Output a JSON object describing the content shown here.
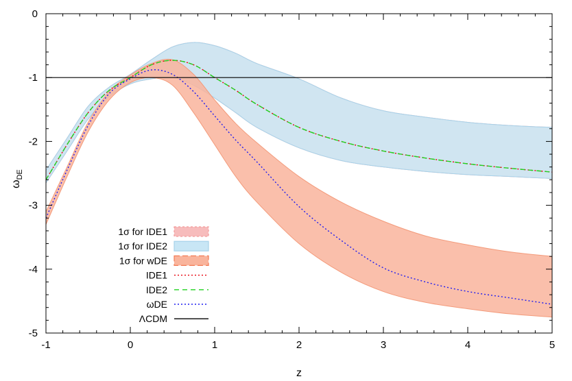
{
  "chart_data": {
    "type": "line",
    "title": "",
    "xlabel": "z",
    "ylabel": "ω",
    "ylabel_sub": "DE",
    "xlim": [
      -1,
      5
    ],
    "ylim": [
      -5,
      0
    ],
    "xticks": [
      -1,
      0,
      1,
      2,
      3,
      4,
      5
    ],
    "yticks": [
      0,
      -1,
      -2,
      -3,
      -4,
      -5
    ],
    "xtick_labels": [
      "-1",
      "0",
      "1",
      "2",
      "3",
      "4",
      "5"
    ],
    "ytick_labels": [
      "0",
      "-1",
      "-2",
      "-3",
      "-4",
      "-5"
    ],
    "grid": false,
    "legend_position": "bottom-left",
    "x": [
      -1,
      -0.75,
      -0.5,
      -0.25,
      0,
      0.25,
      0.5,
      0.75,
      1,
      1.25,
      1.5,
      2,
      2.5,
      3,
      3.5,
      4,
      4.5,
      5
    ],
    "bands": [
      {
        "name": "1σ for IDE1",
        "color": "#f7bcbc",
        "edge_color": "#f29a9a",
        "lower": [
          -2.65,
          -2.15,
          -1.65,
          -1.3,
          -1.1,
          -1.02,
          -1.0,
          -1.12,
          -1.32,
          -1.55,
          -1.78,
          -2.1,
          -2.3,
          -2.4,
          -2.47,
          -2.52,
          -2.55,
          -2.58
        ],
        "upper": [
          -2.45,
          -1.95,
          -1.45,
          -1.15,
          -0.95,
          -0.72,
          -0.52,
          -0.45,
          -0.5,
          -0.62,
          -0.78,
          -1.02,
          -1.32,
          -1.52,
          -1.62,
          -1.7,
          -1.75,
          -1.78
        ]
      },
      {
        "name": "1σ for IDE2",
        "color": "#c8e6f5",
        "edge_color": "#a6d2ea",
        "lower": [
          -2.65,
          -2.15,
          -1.65,
          -1.3,
          -1.1,
          -1.02,
          -1.0,
          -1.12,
          -1.32,
          -1.55,
          -1.78,
          -2.1,
          -2.3,
          -2.4,
          -2.47,
          -2.52,
          -2.55,
          -2.58
        ],
        "upper": [
          -2.45,
          -1.95,
          -1.45,
          -1.15,
          -0.95,
          -0.72,
          -0.52,
          -0.45,
          -0.5,
          -0.62,
          -0.78,
          -1.02,
          -1.32,
          -1.52,
          -1.62,
          -1.7,
          -1.75,
          -1.78
        ]
      },
      {
        "name": "1σ for wDE",
        "color": "#f9b49c",
        "edge_color": "#f39a7a",
        "lower": [
          -3.3,
          -2.55,
          -1.85,
          -1.35,
          -1.08,
          -1.0,
          -1.12,
          -1.55,
          -2.05,
          -2.55,
          -2.95,
          -3.6,
          -4.05,
          -4.35,
          -4.52,
          -4.62,
          -4.7,
          -4.75
        ],
        "upper": [
          -3.1,
          -2.4,
          -1.7,
          -1.22,
          -0.96,
          -0.78,
          -0.72,
          -0.95,
          -1.35,
          -1.72,
          -2.02,
          -2.55,
          -2.95,
          -3.25,
          -3.48,
          -3.62,
          -3.73,
          -3.8
        ]
      }
    ],
    "series": [
      {
        "name": "IDE1",
        "color": "#e8000b",
        "dash": "2,3",
        "values": [
          -2.6,
          -2.05,
          -1.55,
          -1.2,
          -1.0,
          -0.8,
          -0.73,
          -0.8,
          -1.0,
          -1.2,
          -1.42,
          -1.78,
          -2.0,
          -2.15,
          -2.26,
          -2.35,
          -2.42,
          -2.48
        ]
      },
      {
        "name": "IDE2",
        "color": "#1fd31f",
        "dash": "7,5",
        "values": [
          -2.6,
          -2.05,
          -1.55,
          -1.2,
          -1.0,
          -0.8,
          -0.73,
          -0.8,
          -1.0,
          -1.2,
          -1.42,
          -1.78,
          -2.0,
          -2.15,
          -2.26,
          -2.35,
          -2.42,
          -2.48
        ]
      },
      {
        "name": "ωDE",
        "color": "#1c1cf0",
        "dash": "2,3",
        "values": [
          -3.2,
          -2.45,
          -1.75,
          -1.25,
          -1.02,
          -0.88,
          -0.95,
          -1.22,
          -1.6,
          -1.98,
          -2.32,
          -3.02,
          -3.55,
          -3.98,
          -4.2,
          -4.35,
          -4.45,
          -4.55
        ]
      },
      {
        "name": "ΛCDM",
        "color": "#000000",
        "dash": "",
        "values": [
          -1,
          -1,
          -1,
          -1,
          -1,
          -1,
          -1,
          -1,
          -1,
          -1,
          -1,
          -1,
          -1,
          -1,
          -1,
          -1,
          -1,
          -1
        ]
      }
    ],
    "legend": [
      {
        "label": "1σ for IDE1",
        "kind": "band",
        "color": "#f7bcbc",
        "edge": "#f29a9a",
        "dash": "3,3"
      },
      {
        "label": "1σ for IDE2",
        "kind": "band",
        "color": "#c8e6f5",
        "edge": "#a6d2ea",
        "dash": ""
      },
      {
        "label": "1σ for wDE",
        "kind": "band",
        "color": "#f9b49c",
        "edge": "#f27a55",
        "dash": "8,4"
      },
      {
        "label": "IDE1",
        "kind": "line",
        "color": "#e8000b",
        "dash": "2,3"
      },
      {
        "label": "IDE2",
        "kind": "line",
        "color": "#1fd31f",
        "dash": "7,5"
      },
      {
        "label": "ωDE",
        "kind": "line",
        "color": "#1c1cf0",
        "dash": "2,3"
      },
      {
        "label": "ΛCDM",
        "kind": "line",
        "color": "#000000",
        "dash": ""
      }
    ]
  }
}
